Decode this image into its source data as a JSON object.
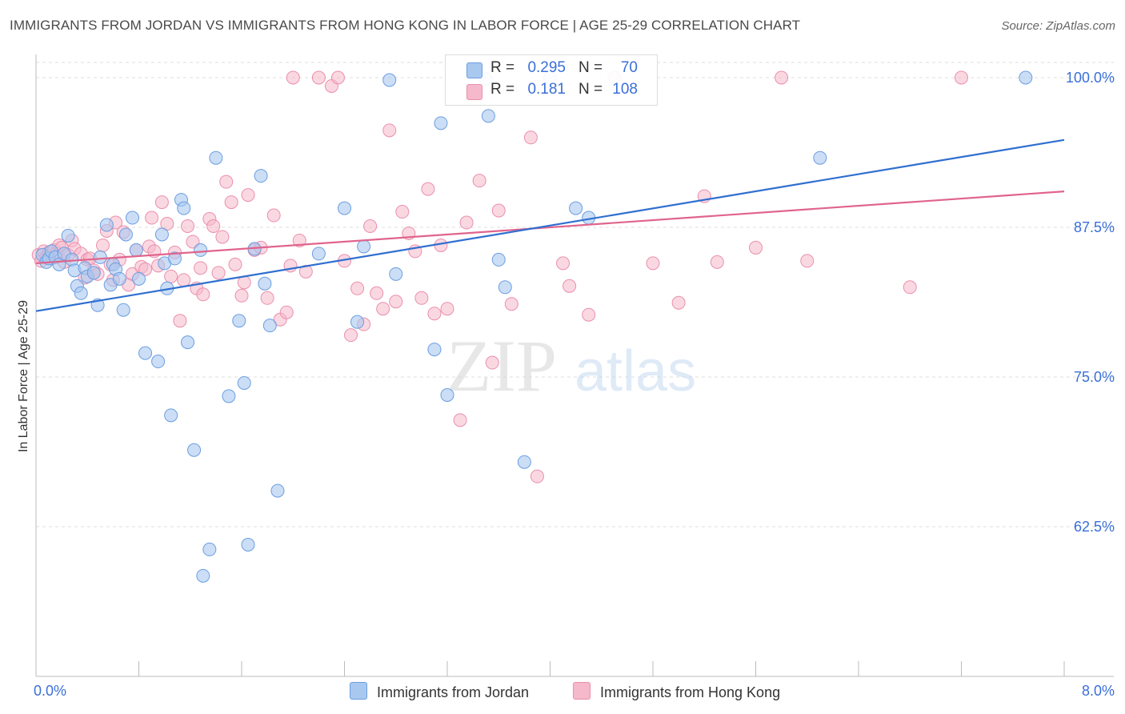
{
  "title": "IMMIGRANTS FROM JORDAN VS IMMIGRANTS FROM HONG KONG IN LABOR FORCE | AGE 25-29 CORRELATION CHART",
  "source": "Source: ZipAtlas.com",
  "watermark": {
    "zip": "ZIP",
    "atlas": "atlas"
  },
  "colors": {
    "jordan_fill": "#a9c8f0",
    "jordan_stroke": "#6b9ee0",
    "jordan_line": "#2f6fd0",
    "hongkong_fill": "#f6b8cb",
    "hongkong_stroke": "#ea8fad",
    "hongkong_line": "#e0648c",
    "axis_text": "#3a6fd8",
    "grid": "#dcdcdc"
  },
  "legend": {
    "jordan": {
      "r_label": "R =",
      "r_value": "0.295",
      "n_label": "N =",
      "n_value": "70"
    },
    "hongkong": {
      "r_label": "R =",
      "r_value": "0.181",
      "n_label": "N =",
      "n_value": "108"
    }
  },
  "chart_data": {
    "type": "scatter",
    "title": "IMMIGRANTS FROM JORDAN VS IMMIGRANTS FROM HONG KONG IN LABOR FORCE | AGE 25-29 CORRELATION CHART",
    "xlabel": "",
    "ylabel": "In Labor Force | Age 25-29",
    "xlim": [
      0,
      8
    ],
    "ylim": [
      50,
      100
    ],
    "x_tick_labels": [
      "0.0%",
      "8.0%"
    ],
    "y_ticks": [
      62.5,
      75.0,
      87.5,
      100.0
    ],
    "y_tick_labels": [
      "62.5%",
      "75.0%",
      "87.5%",
      "100.0%"
    ],
    "grid": true,
    "legend_position": "top-center",
    "series": [
      {
        "name": "Immigrants from Jordan",
        "trend": [
          [
            0,
            80.5
          ],
          [
            8,
            94.8
          ]
        ],
        "points": [
          [
            0.05,
            85.2
          ],
          [
            0.08,
            84.6
          ],
          [
            0.1,
            84.9
          ],
          [
            0.12,
            85.5
          ],
          [
            0.15,
            85.0
          ],
          [
            0.18,
            84.4
          ],
          [
            0.22,
            85.3
          ],
          [
            0.25,
            86.8
          ],
          [
            0.28,
            84.8
          ],
          [
            0.3,
            83.9
          ],
          [
            0.32,
            82.6
          ],
          [
            0.35,
            82.0
          ],
          [
            0.38,
            84.1
          ],
          [
            0.4,
            83.4
          ],
          [
            0.45,
            83.7
          ],
          [
            0.48,
            81.0
          ],
          [
            0.5,
            85.0
          ],
          [
            0.55,
            87.7
          ],
          [
            0.58,
            82.7
          ],
          [
            0.6,
            84.4
          ],
          [
            0.62,
            84.0
          ],
          [
            0.65,
            83.2
          ],
          [
            0.68,
            80.6
          ],
          [
            0.7,
            86.9
          ],
          [
            0.75,
            88.3
          ],
          [
            0.78,
            85.6
          ],
          [
            0.8,
            83.2
          ],
          [
            0.85,
            77.0
          ],
          [
            0.95,
            76.3
          ],
          [
            0.98,
            86.9
          ],
          [
            1.0,
            84.5
          ],
          [
            1.02,
            82.4
          ],
          [
            1.05,
            71.8
          ],
          [
            1.08,
            84.9
          ],
          [
            1.13,
            89.8
          ],
          [
            1.15,
            89.1
          ],
          [
            1.18,
            77.9
          ],
          [
            1.23,
            68.9
          ],
          [
            1.28,
            85.6
          ],
          [
            1.3,
            58.4
          ],
          [
            1.35,
            60.6
          ],
          [
            1.4,
            93.3
          ],
          [
            1.5,
            73.4
          ],
          [
            1.58,
            79.7
          ],
          [
            1.62,
            74.5
          ],
          [
            1.65,
            61.0
          ],
          [
            1.7,
            85.7
          ],
          [
            1.75,
            91.8
          ],
          [
            1.78,
            82.8
          ],
          [
            1.82,
            79.3
          ],
          [
            1.88,
            65.5
          ],
          [
            2.2,
            85.3
          ],
          [
            2.4,
            89.1
          ],
          [
            2.5,
            79.6
          ],
          [
            2.55,
            85.9
          ],
          [
            2.75,
            99.8
          ],
          [
            2.8,
            83.6
          ],
          [
            3.1,
            77.3
          ],
          [
            3.15,
            96.2
          ],
          [
            3.2,
            73.5
          ],
          [
            3.5,
            99.9
          ],
          [
            3.52,
            96.8
          ],
          [
            3.6,
            84.8
          ],
          [
            3.65,
            82.5
          ],
          [
            3.8,
            67.9
          ],
          [
            4.0,
            100.0
          ],
          [
            4.2,
            89.1
          ],
          [
            4.3,
            88.3
          ],
          [
            6.1,
            93.3
          ],
          [
            7.7,
            100.0
          ]
        ]
      },
      {
        "name": "Immigrants from Hong Kong",
        "trend": [
          [
            0,
            84.5
          ],
          [
            8,
            90.5
          ]
        ],
        "points": [
          [
            0.02,
            85.2
          ],
          [
            0.04,
            84.7
          ],
          [
            0.06,
            85.5
          ],
          [
            0.08,
            85.0
          ],
          [
            0.1,
            85.4
          ],
          [
            0.12,
            84.9
          ],
          [
            0.14,
            85.6
          ],
          [
            0.16,
            85.3
          ],
          [
            0.18,
            86.0
          ],
          [
            0.2,
            85.8
          ],
          [
            0.22,
            84.6
          ],
          [
            0.25,
            85.2
          ],
          [
            0.28,
            86.4
          ],
          [
            0.3,
            85.7
          ],
          [
            0.35,
            85.3
          ],
          [
            0.38,
            83.3
          ],
          [
            0.4,
            84.8
          ],
          [
            0.42,
            84.9
          ],
          [
            0.45,
            83.9
          ],
          [
            0.48,
            83.6
          ],
          [
            0.52,
            86.0
          ],
          [
            0.55,
            87.2
          ],
          [
            0.58,
            84.4
          ],
          [
            0.6,
            83.1
          ],
          [
            0.62,
            87.9
          ],
          [
            0.65,
            84.8
          ],
          [
            0.68,
            87.1
          ],
          [
            0.72,
            82.7
          ],
          [
            0.75,
            83.6
          ],
          [
            0.78,
            85.6
          ],
          [
            0.82,
            84.2
          ],
          [
            0.85,
            84.0
          ],
          [
            0.88,
            85.9
          ],
          [
            0.9,
            88.3
          ],
          [
            0.92,
            85.5
          ],
          [
            0.95,
            84.3
          ],
          [
            0.98,
            89.6
          ],
          [
            1.02,
            87.8
          ],
          [
            1.05,
            83.4
          ],
          [
            1.08,
            85.4
          ],
          [
            1.12,
            79.7
          ],
          [
            1.15,
            83.1
          ],
          [
            1.18,
            87.6
          ],
          [
            1.22,
            86.3
          ],
          [
            1.25,
            82.4
          ],
          [
            1.28,
            84.1
          ],
          [
            1.3,
            81.9
          ],
          [
            1.35,
            88.2
          ],
          [
            1.38,
            87.6
          ],
          [
            1.42,
            83.7
          ],
          [
            1.45,
            86.7
          ],
          [
            1.48,
            91.3
          ],
          [
            1.52,
            89.6
          ],
          [
            1.55,
            84.4
          ],
          [
            1.6,
            81.8
          ],
          [
            1.62,
            82.9
          ],
          [
            1.65,
            90.2
          ],
          [
            1.7,
            85.6
          ],
          [
            1.75,
            85.8
          ],
          [
            1.8,
            81.6
          ],
          [
            1.85,
            88.5
          ],
          [
            1.9,
            79.8
          ],
          [
            1.95,
            80.4
          ],
          [
            1.98,
            84.3
          ],
          [
            2.05,
            86.4
          ],
          [
            2.1,
            83.8
          ],
          [
            2.0,
            100.0
          ],
          [
            2.2,
            100.0
          ],
          [
            2.3,
            99.3
          ],
          [
            2.35,
            100.0
          ],
          [
            2.4,
            84.7
          ],
          [
            2.45,
            78.5
          ],
          [
            2.5,
            82.4
          ],
          [
            2.55,
            79.4
          ],
          [
            2.6,
            87.6
          ],
          [
            2.65,
            82.0
          ],
          [
            2.7,
            80.7
          ],
          [
            2.75,
            95.6
          ],
          [
            2.8,
            81.3
          ],
          [
            2.85,
            88.8
          ],
          [
            2.9,
            87.0
          ],
          [
            2.95,
            85.5
          ],
          [
            3.0,
            81.6
          ],
          [
            3.05,
            90.7
          ],
          [
            3.1,
            80.3
          ],
          [
            3.15,
            86.0
          ],
          [
            3.2,
            80.7
          ],
          [
            3.3,
            71.4
          ],
          [
            3.35,
            87.9
          ],
          [
            3.45,
            91.4
          ],
          [
            3.55,
            76.2
          ],
          [
            3.6,
            88.9
          ],
          [
            3.7,
            81.1
          ],
          [
            3.85,
            95.0
          ],
          [
            3.9,
            66.7
          ],
          [
            4.1,
            84.5
          ],
          [
            4.15,
            82.6
          ],
          [
            4.3,
            80.2
          ],
          [
            4.5,
            100.0
          ],
          [
            4.8,
            84.5
          ],
          [
            5.0,
            81.2
          ],
          [
            5.2,
            90.1
          ],
          [
            5.3,
            84.6
          ],
          [
            5.6,
            85.8
          ],
          [
            5.8,
            100.0
          ],
          [
            6.0,
            84.7
          ],
          [
            6.8,
            82.5
          ],
          [
            7.2,
            100.0
          ]
        ]
      }
    ]
  },
  "bottom_legend": {
    "jordan": "Immigrants from Jordan",
    "hongkong": "Immigrants from Hong Kong"
  }
}
